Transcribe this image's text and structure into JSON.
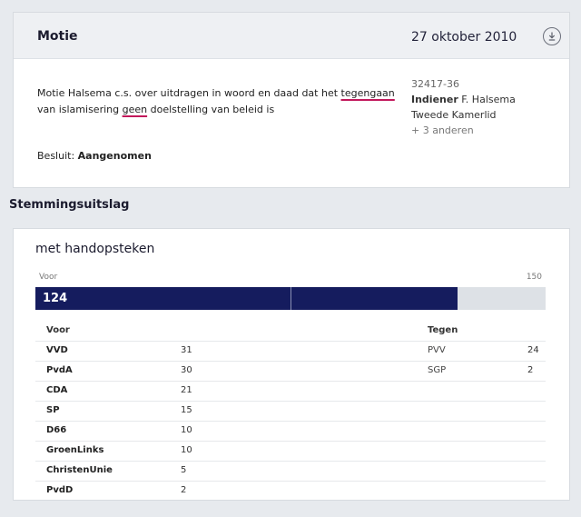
{
  "motion": {
    "header_title": "Motie",
    "date": "27 oktober 2010",
    "text_before": "Motie Halsema c.s. over uitdragen in woord en daad dat het ",
    "text_ul1": "tegengaan",
    "text_mid": " van islamisering ",
    "text_ul2": "geen",
    "text_after": " doelstelling van beleid is",
    "decision_label": "Besluit:",
    "decision_value": "Aangenomen",
    "number": "32417-36",
    "submitter_label": "Indiener",
    "submitter_name": "F. Halsema",
    "submitter_role": "Tweede Kamerlid",
    "others": "+ 3 anderen"
  },
  "voting": {
    "section_title": "Stemmingsuitslag",
    "method": "met handopsteken",
    "bar_left_label": "Voor",
    "bar_right_label": "150",
    "bar_value_label": "124",
    "for_votes": 124,
    "total_seats": 150,
    "for_header": "Voor",
    "against_header": "Tegen",
    "for_parties": [
      {
        "name": "VVD",
        "seats": "31"
      },
      {
        "name": "PvdA",
        "seats": "30"
      },
      {
        "name": "CDA",
        "seats": "21"
      },
      {
        "name": "SP",
        "seats": "15"
      },
      {
        "name": "D66",
        "seats": "10"
      },
      {
        "name": "GroenLinks",
        "seats": "10"
      },
      {
        "name": "ChristenUnie",
        "seats": "5"
      },
      {
        "name": "PvdD",
        "seats": "2"
      }
    ],
    "against_parties": [
      {
        "name": "PVV",
        "seats": "24"
      },
      {
        "name": "SGP",
        "seats": "2"
      }
    ]
  },
  "colors": {
    "bar_fill": "#151c5e",
    "underline": "#c2185b"
  },
  "icons": {
    "download": "download-icon"
  }
}
